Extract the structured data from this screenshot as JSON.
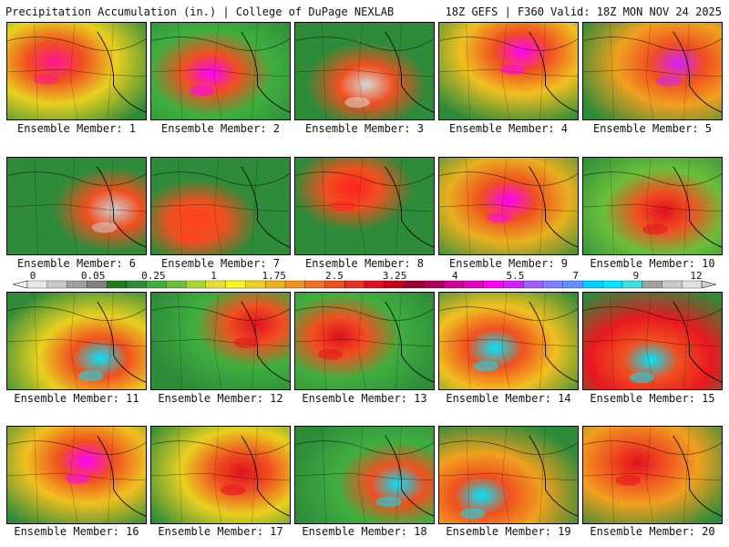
{
  "header": {
    "left": "Precipitation Accumulation (in.) | College of DuPage NEXLAB",
    "right": "18Z GEFS | F360 Valid: 18Z MON NOV 24 2025"
  },
  "label_prefix": "Ensemble Member: ",
  "members": [
    {
      "id": 1,
      "highlight": "#ff1493",
      "base": "#e8d020"
    },
    {
      "id": 2,
      "highlight": "#ff00ff",
      "base": "#3fae3f"
    },
    {
      "id": 3,
      "highlight": "#d8d8d8",
      "base": "#2e8b3a"
    },
    {
      "id": 4,
      "highlight": "#ff00ff",
      "base": "#f0c020"
    },
    {
      "id": 5,
      "highlight": "#d020ff",
      "base": "#f0a020"
    },
    {
      "id": 6,
      "highlight": "#cfcfcf",
      "base": "#2e8b3a"
    },
    {
      "id": 7,
      "highlight": "#ff4020",
      "base": "#2e8b3a"
    },
    {
      "id": 8,
      "highlight": "#ff2020",
      "base": "#2e8b3a"
    },
    {
      "id": 9,
      "highlight": "#ff00ff",
      "base": "#e8b020"
    },
    {
      "id": 10,
      "highlight": "#e01020",
      "base": "#6bbf3a"
    },
    {
      "id": 11,
      "highlight": "#00e5ff",
      "base": "#e8d020"
    },
    {
      "id": 12,
      "highlight": "#e01020",
      "base": "#3fae3f"
    },
    {
      "id": 13,
      "highlight": "#e01020",
      "base": "#3fae3f"
    },
    {
      "id": 14,
      "highlight": "#00e5ff",
      "base": "#f0c020"
    },
    {
      "id": 15,
      "highlight": "#00e5ff",
      "base": "#e81820"
    },
    {
      "id": 16,
      "highlight": "#ff00ff",
      "base": "#f0c020"
    },
    {
      "id": 17,
      "highlight": "#e01020",
      "base": "#e8d020"
    },
    {
      "id": 18,
      "highlight": "#00e5ff",
      "base": "#3fae3f"
    },
    {
      "id": 19,
      "highlight": "#00e5ff",
      "base": "#f0a020"
    },
    {
      "id": 20,
      "highlight": "#e01020",
      "base": "#f0a020"
    }
  ],
  "legend": {
    "ticks": [
      "0",
      "0.05",
      "0.25",
      "1",
      "1.75",
      "2.5",
      "3.25",
      "4",
      "5.5",
      "7",
      "9",
      "12"
    ],
    "colors": [
      "#e8e8e8",
      "#c8c8c8",
      "#a0a0a0",
      "#808080",
      "#1f7a1f",
      "#2e8b3a",
      "#3fae3f",
      "#6bbf3a",
      "#a8d830",
      "#e8e030",
      "#f8f820",
      "#f0d020",
      "#f0b020",
      "#f09020",
      "#f07020",
      "#f05020",
      "#e83020",
      "#e01020",
      "#c00018",
      "#a00030",
      "#b00060",
      "#d00090",
      "#e800c0",
      "#ff00ff",
      "#d020ff",
      "#a060ff",
      "#8080ff",
      "#6090ff",
      "#00d0ff",
      "#00e5ff",
      "#40e0e0",
      "#a0a0a0",
      "#c8c8c8",
      "#e0e0e0"
    ]
  }
}
